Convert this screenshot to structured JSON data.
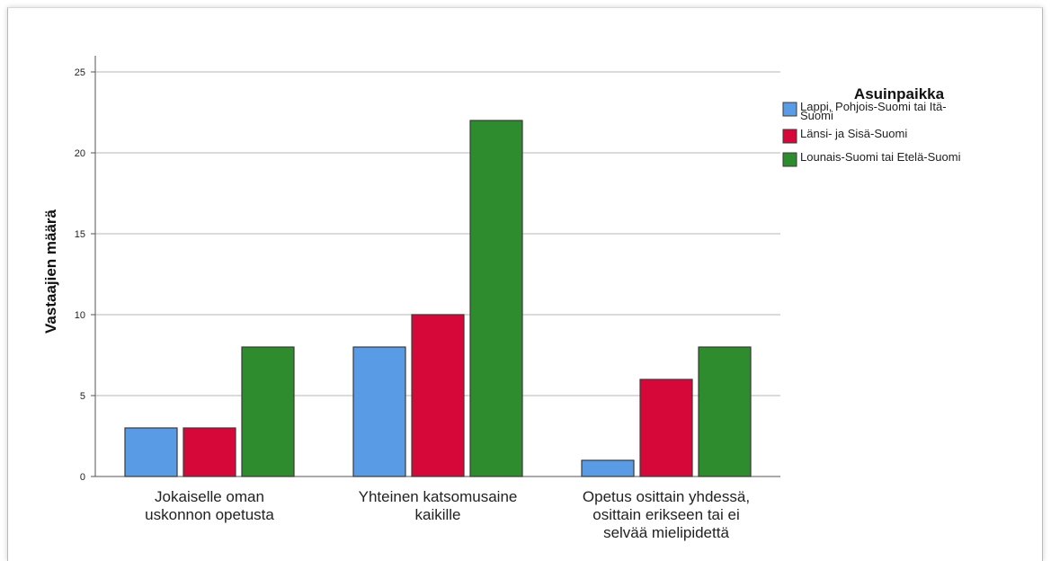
{
  "chart_data": {
    "type": "bar",
    "ylabel": "Vastaajien määrä",
    "xlabel": "",
    "ylim": [
      0,
      26
    ],
    "yticks": [
      0,
      5,
      10,
      15,
      20,
      25
    ],
    "grid": true,
    "legend_title": "Asuinpaikka",
    "legend_position": "top-right",
    "categories": [
      [
        "Jokaiselle oman",
        "uskonnon opetusta"
      ],
      [
        "Yhteinen katsomusaine",
        "kaikille"
      ],
      [
        "Opetus osittain yhdessä,",
        "osittain erikseen tai ei",
        "selvää mielipidettä"
      ]
    ],
    "series": [
      {
        "name": [
          "Lappi, Pohjois-Suomi tai Itä-",
          "Suomi"
        ],
        "color": "#5a9be6",
        "values": [
          3,
          8,
          1
        ]
      },
      {
        "name": [
          "Länsi- ja Sisä-Suomi"
        ],
        "color": "#d6083a",
        "values": [
          3,
          10,
          6
        ]
      },
      {
        "name": [
          "Lounais-Suomi tai Etelä-Suomi"
        ],
        "color": "#2e8b2e",
        "values": [
          8,
          22,
          8
        ]
      }
    ]
  }
}
